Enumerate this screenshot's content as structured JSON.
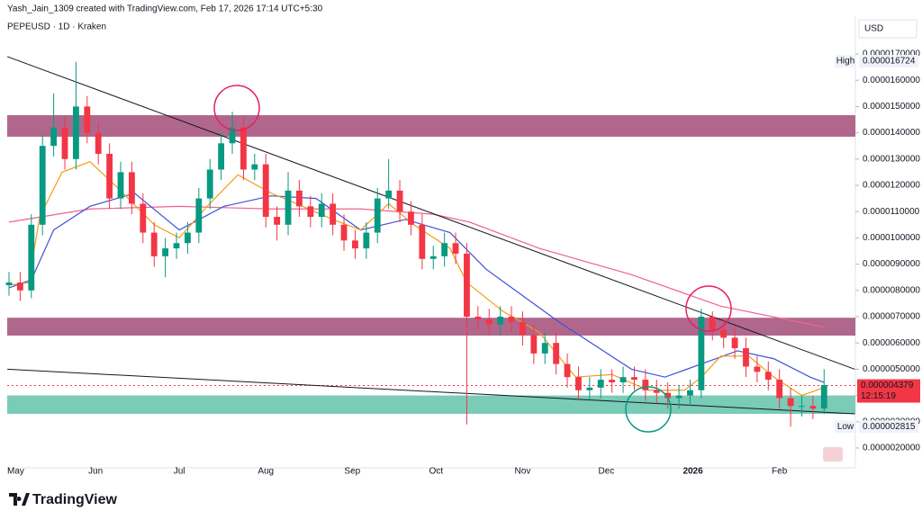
{
  "chart_data": {
    "type": "candlestick",
    "credit": "Yash_Jain_1309 created with TradingView.com, Feb 17, 2026 17:14 UTC+5:30",
    "title": "PEPEUSD · 1D · Kraken",
    "currency": "USD",
    "brand": "TradingView",
    "xlim": [
      -0.645,
      303.2
    ],
    "xticks": [
      {
        "value": 0,
        "label": "May"
      },
      {
        "value": 31,
        "label": "Jun"
      },
      {
        "value": 61,
        "label": "Jul"
      },
      {
        "value": 92,
        "label": "Aug"
      },
      {
        "value": 123,
        "label": "Sep"
      },
      {
        "value": 153,
        "label": "Oct"
      },
      {
        "value": 184,
        "label": "Nov"
      },
      {
        "value": 214,
        "label": "Dec"
      },
      {
        "value": 245,
        "label": "2026"
      },
      {
        "value": 276,
        "label": "Feb"
      }
    ],
    "ylim": [
      1.247e-06,
      1.8438e-05
    ],
    "yticks": [
      {
        "value": 1.7e-05,
        "label": "0.0000170000"
      },
      {
        "value": 1.6e-05,
        "label": "0.0000160000"
      },
      {
        "value": 1.5e-05,
        "label": "0.0000150000"
      },
      {
        "value": 1.4e-05,
        "label": "0.0000140000"
      },
      {
        "value": 1.3e-05,
        "label": "0.0000130000"
      },
      {
        "value": 1.2e-05,
        "label": "0.0000120000"
      },
      {
        "value": 1.1e-05,
        "label": "0.0000110000"
      },
      {
        "value": 1e-05,
        "label": "0.0000100000"
      },
      {
        "value": 9e-06,
        "label": "0.0000090000"
      },
      {
        "value": 8e-06,
        "label": "0.0000080000"
      },
      {
        "value": 7e-06,
        "label": "0.0000070000"
      },
      {
        "value": 6e-06,
        "label": "0.0000060000"
      },
      {
        "value": 5e-06,
        "label": "0.0000050000"
      },
      {
        "value": 4e-06,
        "label": "0.0000040000"
      },
      {
        "value": 3e-06,
        "label": "0.0000030000"
      },
      {
        "value": 2e-06,
        "label": "0.0000020000"
      }
    ],
    "grid": false,
    "up_color": "#089981",
    "down_color": "#f23645",
    "x": [
      0,
      4,
      8,
      12,
      16,
      20,
      24,
      28,
      32,
      36,
      40,
      44,
      48,
      52,
      56,
      60,
      64,
      68,
      72,
      76,
      80,
      84,
      88,
      92,
      96,
      100,
      104,
      108,
      112,
      116,
      120,
      124,
      128,
      132,
      136,
      140,
      144,
      148,
      152,
      156,
      160,
      164,
      168,
      172,
      176,
      180,
      184,
      188,
      192,
      196,
      200,
      204,
      208,
      212,
      216,
      220,
      224,
      228,
      232,
      236,
      240,
      244,
      248,
      252,
      256,
      260,
      264,
      268,
      272,
      276,
      280,
      284,
      288,
      292
    ],
    "open": [
      8.2e-06,
      8.3e-06,
      8e-06,
      1.05e-05,
      1.35e-05,
      1.42e-05,
      1.3e-05,
      1.5e-05,
      1.4e-05,
      1.32e-05,
      1.15e-05,
      1.25e-05,
      1.13e-05,
      1.02e-05,
      9.3e-06,
      9.6e-06,
      9.8e-06,
      1.02e-05,
      1.15e-05,
      1.26e-05,
      1.36e-05,
      1.42e-05,
      1.26e-05,
      1.28e-05,
      1.08e-05,
      1.05e-05,
      1.18e-05,
      1.12e-05,
      1.08e-05,
      1.13e-05,
      1.05e-05,
      9.9e-06,
      9.6e-06,
      1.02e-05,
      1.15e-05,
      1.18e-05,
      1.1e-05,
      1.05e-05,
      9.2e-06,
      9.3e-06,
      9.8e-06,
      9.4e-06,
      7e-06,
      6.9e-06,
      6.7e-06,
      7e-06,
      6.8e-06,
      6.3e-06,
      5.6e-06,
      6e-06,
      5.2e-06,
      4.7e-06,
      4.2e-06,
      4.3e-06,
      4.6e-06,
      4.5e-06,
      4.7e-06,
      4.6e-06,
      4.2e-06,
      4.1e-06,
      3.9e-06,
      4e-06,
      4.2e-06,
      7e-06,
      6.5e-06,
      6.2e-06,
      5.8e-06,
      5.1e-06,
      4.9e-06,
      4.6e-06,
      3.9e-06,
      3.6e-06,
      3.6e-06,
      3.5e-06
    ],
    "high": [
      8.7e-06,
      8.7e-06,
      1.09e-05,
      1.39e-05,
      1.55e-05,
      1.46e-05,
      1.67e-05,
      1.54e-05,
      1.44e-05,
      1.36e-05,
      1.29e-05,
      1.29e-05,
      1.17e-05,
      1.06e-05,
      1e-05,
      1.02e-05,
      1.06e-05,
      1.19e-05,
      1.3e-05,
      1.4e-05,
      1.48e-05,
      1.46e-05,
      1.32e-05,
      1.32e-05,
      1.12e-05,
      1.25e-05,
      1.22e-05,
      1.16e-05,
      1.17e-05,
      1.17e-05,
      1.09e-05,
      1.03e-05,
      1.06e-05,
      1.19e-05,
      1.3e-05,
      1.22e-05,
      1.14e-05,
      1.09e-05,
      9.7e-06,
      1.02e-05,
      1.02e-05,
      9.8e-06,
      7.4e-06,
      7.3e-06,
      7.4e-06,
      7.4e-06,
      7.2e-06,
      6.7e-06,
      6.4e-06,
      6.4e-06,
      5.6e-06,
      5.1e-06,
      4.7e-06,
      5e-06,
      5e-06,
      5.1e-06,
      5.1e-06,
      5e-06,
      4.6e-06,
      4.5e-06,
      4.4e-06,
      4.6e-06,
      7.3e-06,
      7.2e-06,
      6.9e-06,
      6.6e-06,
      6.2e-06,
      5.5e-06,
      5.3e-06,
      5e-06,
      4.3e-06,
      4e-06,
      4e-06,
      5e-06
    ],
    "low": [
      7.8e-06,
      7.6e-06,
      7.7e-06,
      1.01e-05,
      1.31e-05,
      1.26e-05,
      1.26e-05,
      1.36e-05,
      1.28e-05,
      1.11e-05,
      1.11e-05,
      1.09e-05,
      9.8e-06,
      8.9e-06,
      8.5e-06,
      9.2e-06,
      9.4e-06,
      9.8e-06,
      1.11e-05,
      1.22e-05,
      1.32e-05,
      1.22e-05,
      1.22e-05,
      1.04e-05,
      9.9e-06,
      1.01e-05,
      1.08e-05,
      1.04e-05,
      1.04e-05,
      1.01e-05,
      9.5e-06,
      9.2e-06,
      9.2e-06,
      9.8e-06,
      1.11e-05,
      1.06e-05,
      1.01e-05,
      8.8e-06,
      8.8e-06,
      8.9e-06,
      9e-06,
      2.9e-06,
      6.5e-06,
      6.3e-06,
      6.3e-06,
      6.4e-06,
      5.9e-06,
      5.2e-06,
      5.2e-06,
      4.8e-06,
      4.3e-06,
      3.8e-06,
      3.8e-06,
      3.9e-06,
      4.1e-06,
      4.1e-06,
      4.2e-06,
      3.8e-06,
      3.7e-06,
      3.5e-06,
      3.5e-06,
      3.6e-06,
      3.9e-06,
      6.1e-06,
      5.8e-06,
      5.4e-06,
      4.7e-06,
      4.5e-06,
      4.2e-06,
      3.5e-06,
      2.815e-06,
      3.2e-06,
      3.1e-06,
      3.3e-06
    ],
    "close": [
      8.3e-06,
      8e-06,
      1.05e-05,
      1.35e-05,
      1.42e-05,
      1.3e-05,
      1.5e-05,
      1.4e-05,
      1.32e-05,
      1.15e-05,
      1.25e-05,
      1.13e-05,
      1.02e-05,
      9.3e-06,
      9.6e-06,
      9.8e-06,
      1.02e-05,
      1.15e-05,
      1.26e-05,
      1.36e-05,
      1.42e-05,
      1.26e-05,
      1.28e-05,
      1.08e-05,
      1.05e-05,
      1.18e-05,
      1.12e-05,
      1.08e-05,
      1.13e-05,
      1.05e-05,
      9.9e-06,
      9.6e-06,
      1.02e-05,
      1.15e-05,
      1.18e-05,
      1.1e-05,
      1.05e-05,
      9.2e-06,
      9.3e-06,
      9.8e-06,
      9.4e-06,
      7e-06,
      6.9e-06,
      6.7e-06,
      7e-06,
      6.8e-06,
      6.3e-06,
      5.6e-06,
      6e-06,
      5.2e-06,
      4.7e-06,
      4.2e-06,
      4.3e-06,
      4.6e-06,
      4.5e-06,
      4.7e-06,
      4.6e-06,
      4.2e-06,
      4.1e-06,
      3.9e-06,
      4e-06,
      4.2e-06,
      7e-06,
      6.5e-06,
      6.2e-06,
      5.8e-06,
      5.1e-06,
      4.9e-06,
      4.6e-06,
      3.9e-06,
      3.6e-06,
      3.6e-06,
      3.5e-06,
      4.4e-06
    ],
    "lines": [
      {
        "color": "#f06292",
        "x": [
          0,
          29,
          61,
          94,
          126,
          152,
          165,
          190,
          223,
          255,
          292
        ],
        "values": [
          1.06e-05,
          1.11e-05,
          1.12e-05,
          1.11e-05,
          1.11e-05,
          1.09e-05,
          1.06e-05,
          9.6e-06,
          8.6e-06,
          7.4e-06,
          6.6e-06
        ]
      },
      {
        "color": "#3f51d8",
        "x": [
          0,
          8,
          16,
          29,
          45,
          61,
          77,
          94,
          110,
          126,
          142,
          158,
          171,
          184,
          197,
          210,
          223,
          235,
          248,
          261,
          274,
          287,
          292
        ],
        "values": [
          8.1e-06,
          8.4e-06,
          1.03e-05,
          1.12e-05,
          1.17e-05,
          1.03e-05,
          1.12e-05,
          1.16e-05,
          1.15e-05,
          1.03e-05,
          1.07e-05,
          1.02e-05,
          8.8e-06,
          7.8e-06,
          6.8e-06,
          5.9e-06,
          5e-06,
          4.7e-06,
          5.2e-06,
          5.7e-06,
          5.4e-06,
          4.7e-06,
          4.5e-06
        ]
      },
      {
        "color": "#f39c12",
        "x": [
          0,
          7,
          11,
          19,
          29,
          39,
          52,
          61,
          71,
          82,
          94,
          103,
          116,
          126,
          136,
          145,
          158,
          164,
          177,
          190,
          203,
          216,
          229,
          242,
          248,
          255,
          265,
          274,
          284,
          292
        ],
        "values": [
          8.2e-06,
          8.3e-06,
          1.08e-05,
          1.25e-05,
          1.29e-05,
          1.19e-05,
          1.05e-05,
          1e-05,
          1.12e-05,
          1.24e-05,
          1.17e-05,
          1.13e-05,
          1.07e-05,
          1.03e-05,
          1.13e-05,
          1.05e-05,
          9.6e-06,
          8.3e-06,
          7.2e-06,
          6.4e-06,
          4.7e-06,
          4.8e-06,
          4.2e-06,
          4.2e-06,
          4.7e-06,
          5.5e-06,
          5.5e-06,
          4.7e-06,
          4e-06,
          4.3e-06
        ]
      },
      {
        "color": "#131722",
        "x": [
          -0.6,
          303
        ],
        "values": [
          1.69e-05,
          5e-06
        ]
      },
      {
        "color": "#131722",
        "x": [
          -0.6,
          303
        ],
        "values": [
          5e-06,
          3.3e-06
        ]
      }
    ],
    "zones": [
      {
        "range": [
          1.385e-05,
          1.467e-05
        ],
        "color": "#a9577f"
      },
      {
        "range": [
          6.28e-06,
          6.96e-06
        ],
        "color": "#a9577f"
      },
      {
        "range": [
          3.3e-06,
          4e-06
        ],
        "color": "#6cc5b0"
      }
    ],
    "markers": [
      {
        "name": "High",
        "value": 1.6724e-05,
        "label": "0.000016724"
      },
      {
        "name": "Low",
        "value": 2.815e-06,
        "label": "0.000002815"
      }
    ],
    "last": {
      "value": 4.379e-06,
      "label": "0.000004379",
      "countdown": "12:15:19",
      "color": "#f23645"
    }
  }
}
